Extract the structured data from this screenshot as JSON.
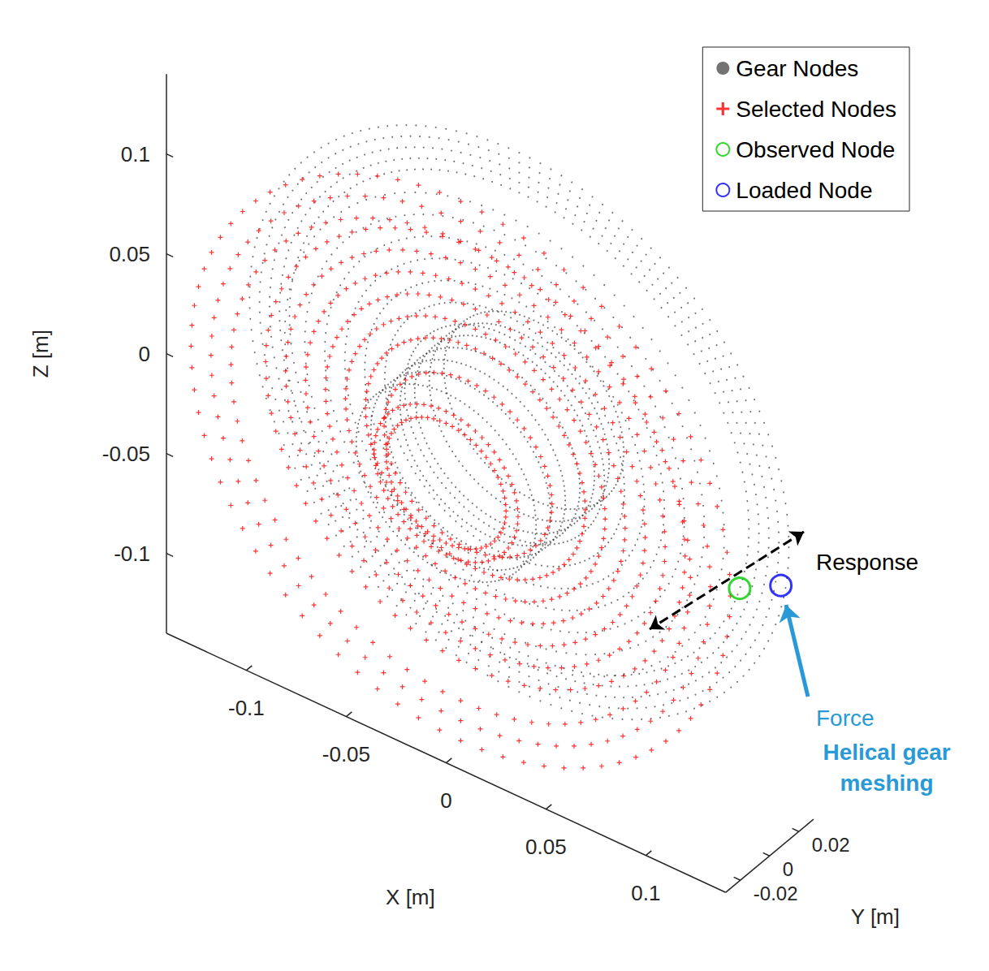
{
  "chart_data": {
    "type": "scatter3d",
    "xlabel": "X [m]",
    "ylabel": "Y [m]",
    "zlabel": "Z [m]",
    "xlim": [
      -0.14,
      0.14
    ],
    "xticks": [
      -0.1,
      -0.05,
      0,
      0.05,
      0.1
    ],
    "ylim": [
      -0.03,
      0.03
    ],
    "yticks": [
      -0.02,
      0,
      0.02
    ],
    "zlim": [
      -0.14,
      0.14
    ],
    "zticks": [
      -0.1,
      -0.05,
      0,
      0.05,
      0.1
    ],
    "legend": "top-right",
    "series": [
      {
        "name": "Gear Nodes",
        "color": "#000000",
        "marker": "point",
        "rings": [
          {
            "radius": 0.05,
            "y": 0.01,
            "nodes": 120
          },
          {
            "radius": 0.06,
            "y": 0.01,
            "nodes": 120
          },
          {
            "radius": 0.07,
            "y": 0.01,
            "nodes": 120
          },
          {
            "radius": 0.08,
            "y": 0.01,
            "nodes": 120
          },
          {
            "radius": 0.09,
            "y": 0.01,
            "nodes": 120
          },
          {
            "radius": 0.1,
            "y": 0.01,
            "nodes": 120
          },
          {
            "radius": 0.11,
            "y": 0.01,
            "nodes": 120
          },
          {
            "radius": 0.045,
            "y": -0.03,
            "nodes": 120
          },
          {
            "radius": 0.045,
            "y": -0.02,
            "nodes": 120
          },
          {
            "radius": 0.045,
            "y": -0.01,
            "nodes": 120
          },
          {
            "radius": 0.045,
            "y": 0,
            "nodes": 120
          },
          {
            "radius": 0.045,
            "y": 0.01,
            "nodes": 120
          },
          {
            "radius": 0.045,
            "y": 0.02,
            "nodes": 120
          },
          {
            "radius": 0.045,
            "y": 0.03,
            "nodes": 120
          },
          {
            "radius": 0.115,
            "y": 0.02,
            "nodes": 160
          },
          {
            "radius": 0.12,
            "y": 0.02,
            "nodes": 160
          },
          {
            "radius": 0.125,
            "y": 0.02,
            "nodes": 160
          },
          {
            "radius": 0.13,
            "y": 0.02,
            "nodes": 160
          },
          {
            "radius": 0.135,
            "y": 0.02,
            "nodes": 160
          }
        ]
      },
      {
        "name": "Selected Nodes",
        "color": "#ff0000",
        "marker": "asterisk",
        "rings": [
          {
            "radius": 0.03,
            "y": -0.03,
            "nodes": 60
          },
          {
            "radius": 0.036,
            "y": -0.03,
            "nodes": 60
          },
          {
            "radius": 0.042,
            "y": -0.015,
            "nodes": 60
          },
          {
            "radius": 0.055,
            "y": -0.01,
            "nodes": 80
          },
          {
            "radius": 0.065,
            "y": -0.01,
            "nodes": 80
          },
          {
            "radius": 0.075,
            "y": -0.01,
            "nodes": 80
          },
          {
            "radius": 0.085,
            "y": -0.01,
            "nodes": 80
          },
          {
            "radius": 0.095,
            "y": -0.01,
            "nodes": 80
          },
          {
            "radius": 0.105,
            "y": -0.01,
            "nodes": 80
          },
          {
            "radius": 0.115,
            "y": -0.02,
            "nodes": 80
          },
          {
            "radius": 0.125,
            "y": -0.02,
            "nodes": 80
          },
          {
            "radius": 0.135,
            "y": -0.02,
            "nodes": 80
          }
        ]
      },
      {
        "name": "Observed Node",
        "color": "#00cc00",
        "marker": "circle",
        "x": [
          0.125
        ],
        "y": [
          0
        ],
        "z": [
          -0.013
        ]
      },
      {
        "name": "Loaded Node",
        "color": "#0000ff",
        "marker": "circle",
        "x": [
          0.131
        ],
        "y": [
          0.02
        ],
        "z": [
          -0.021
        ]
      }
    ],
    "annotations": [
      {
        "text": "Response",
        "color": "#000000"
      },
      {
        "text": "Force",
        "color": "#2a9ad6"
      },
      {
        "text": "Helical gear meshing",
        "color": "#2a9ad6"
      }
    ]
  }
}
